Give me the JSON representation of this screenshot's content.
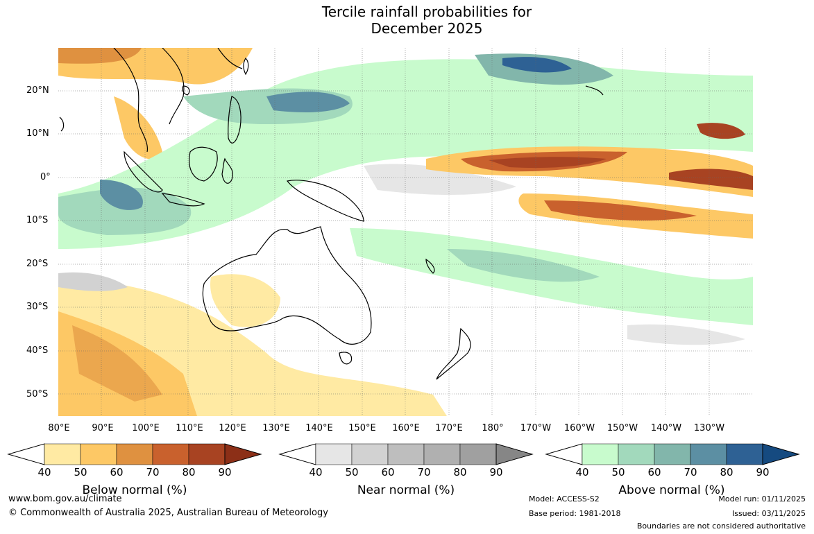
{
  "title": {
    "line1": "Tercile rainfall probabilities for",
    "line2": "December 2025"
  },
  "lat_labels": [
    "20°N",
    "10°N",
    "0°",
    "10°S",
    "20°S",
    "30°S",
    "40°S",
    "50°S"
  ],
  "lon_labels": [
    "80°E",
    "90°E",
    "100°E",
    "110°E",
    "120°E",
    "130°E",
    "140°E",
    "150°E",
    "160°E",
    "170°E",
    "180°",
    "170°W",
    "160°W",
    "150°W",
    "140°W",
    "130°W"
  ],
  "colorbars": [
    {
      "label": "Below normal (%)",
      "ticks": [
        "40",
        "50",
        "60",
        "70",
        "80",
        "90"
      ],
      "colors": [
        "#ffeaa3",
        "#fdc865",
        "#df9140",
        "#c9612d",
        "#a84322",
        "#8c2f17"
      ]
    },
    {
      "label": "Near normal (%)",
      "ticks": [
        "40",
        "50",
        "60",
        "70",
        "80",
        "90"
      ],
      "colors": [
        "#e6e6e6",
        "#d2d2d2",
        "#bebebe",
        "#b0b0b0",
        "#a0a0a0",
        "#868686"
      ]
    },
    {
      "label": "Above normal (%)",
      "ticks": [
        "40",
        "50",
        "60",
        "70",
        "80",
        "90"
      ],
      "colors": [
        "#c8fbcd",
        "#a2d9bc",
        "#82b6ab",
        "#5c8fa3",
        "#2e6194",
        "#154a80"
      ]
    }
  ],
  "footer": {
    "website": "www.bom.gov.au/climate",
    "copyright": "© Commonwealth of Australia 2025, Australian Bureau of Meteorology",
    "model": "Model: ACCESS-S2",
    "base_period": "Base period: 1981-2018",
    "model_run": "Model run: 01/11/2025",
    "issued": "Issued: 03/11/2025",
    "disclaimer": "Boundaries are not considered authoritative"
  }
}
